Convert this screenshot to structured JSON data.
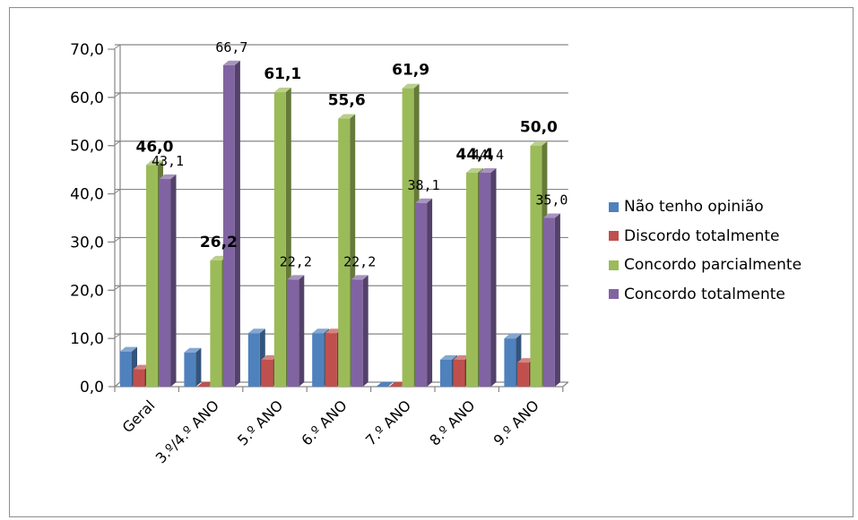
{
  "chart_data": {
    "type": "bar",
    "categories": [
      "Geral",
      "3.º/4.º ANO",
      "5.º ANO",
      "6.º ANO",
      "7.º ANO",
      "8.º ANO",
      "9.º ANO"
    ],
    "series": [
      {
        "name": "Não tenho opinião",
        "color": "#4f81bd",
        "values": [
          7.3,
          7.1,
          11.1,
          11.1,
          0.0,
          5.6,
          10.0
        ]
      },
      {
        "name": "Discordo totalmente",
        "color": "#c0504d",
        "values": [
          3.6,
          0.0,
          5.6,
          11.1,
          0.0,
          5.6,
          5.0
        ]
      },
      {
        "name": "Concordo parcialmente",
        "color": "#9bbb59",
        "values": [
          46.0,
          26.2,
          61.1,
          55.6,
          61.9,
          44.4,
          50.0
        ]
      },
      {
        "name": "Concordo totalmente",
        "color": "#8064a2",
        "values": [
          43.1,
          66.7,
          22.2,
          22.2,
          38.1,
          44.4,
          35.0
        ]
      }
    ],
    "data_labels": {
      "Concordo parcialmente": [
        "46,0",
        "26,2",
        "61,1",
        "55,6",
        "61,9",
        "44,4",
        "50,0"
      ],
      "Concordo totalmente": [
        "43,1",
        "66,7",
        "22,2",
        "22,2",
        "38,1",
        "44,4",
        "35,0"
      ]
    },
    "y_ticks": [
      "0,0",
      "10,0",
      "20,0",
      "30,0",
      "40,0",
      "50,0",
      "60,0",
      "70,0"
    ],
    "ylim": [
      0,
      70
    ],
    "grid": true,
    "legend_position": "right",
    "title": "",
    "xlabel": "",
    "ylabel": ""
  }
}
